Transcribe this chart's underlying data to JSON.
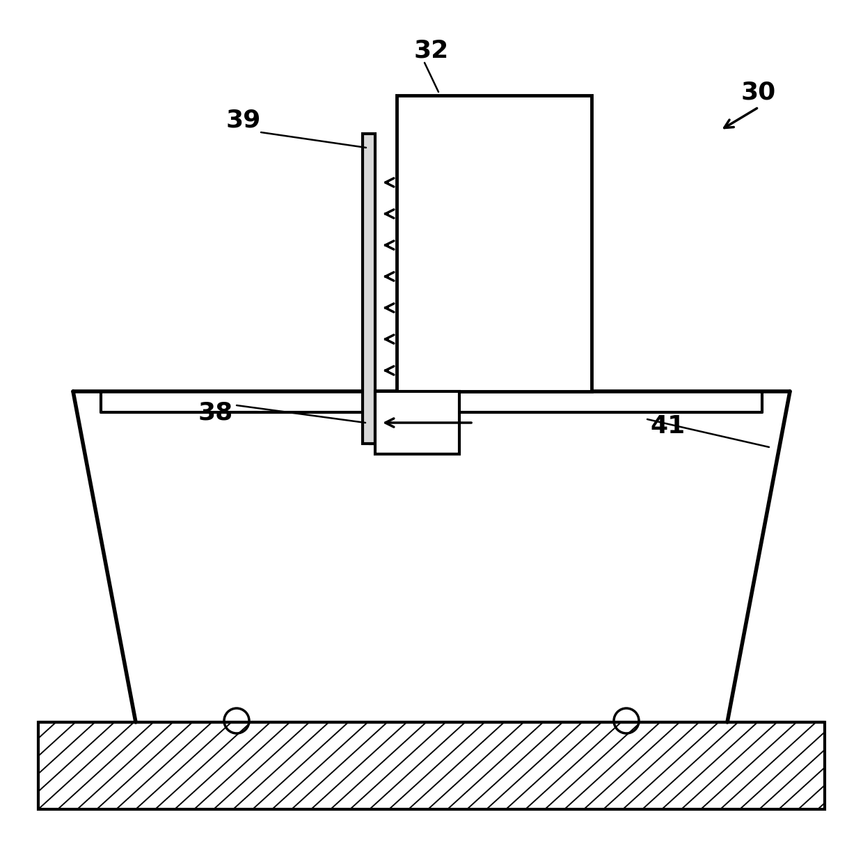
{
  "bg_color": "#ffffff",
  "line_color": "#000000",
  "lw": 3.0,
  "fig_width": 12.4,
  "fig_height": 12.32,
  "dpi": 100
}
